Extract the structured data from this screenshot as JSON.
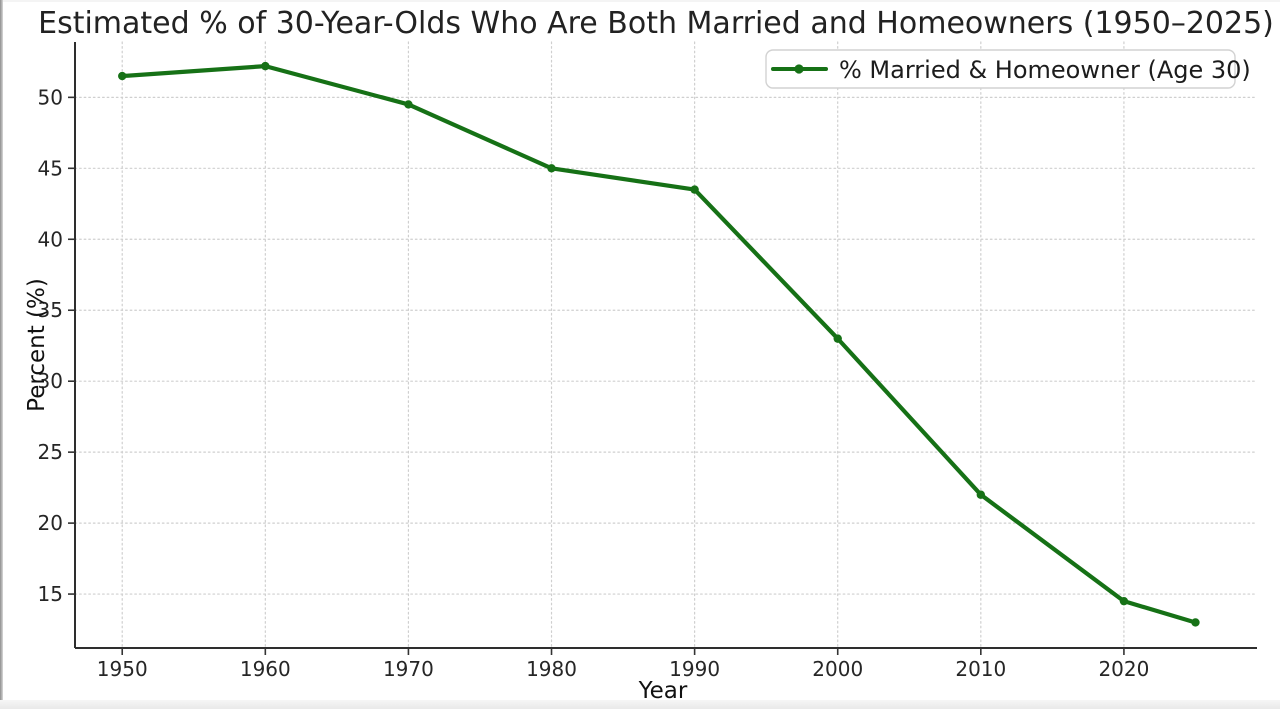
{
  "chart_data": {
    "type": "line",
    "title": "Estimated % of 30-Year-Olds Who Are Both Married and Homeowners (1950–2025)",
    "xlabel": "Year",
    "ylabel": "Percent (%)",
    "series": [
      {
        "name": "% Married & Homeowner (Age 30)",
        "color": "#167116",
        "marker": "circle",
        "x": [
          1950,
          1960,
          1970,
          1980,
          1990,
          2000,
          2010,
          2020,
          2025
        ],
        "values": [
          51.5,
          52.2,
          49.5,
          45.0,
          43.5,
          33.0,
          22.0,
          14.5,
          13.0
        ]
      }
    ],
    "xticks": [
      1950,
      1960,
      1970,
      1980,
      1990,
      2000,
      2010,
      2020
    ],
    "yticks": [
      15,
      20,
      25,
      30,
      35,
      40,
      45,
      50
    ],
    "xlim": [
      1946.7,
      2029.3
    ],
    "ylim": [
      11.2,
      53.9
    ],
    "grid": "dotted both",
    "legend_position": "upper right",
    "spines": "left and bottom only"
  },
  "colors": {
    "line": "#167116",
    "grid": "#cfcfcf",
    "spine": "#2e2e2e",
    "tick": "#333333",
    "legend_border": "#d2d2d2",
    "background": "#ffffff"
  }
}
